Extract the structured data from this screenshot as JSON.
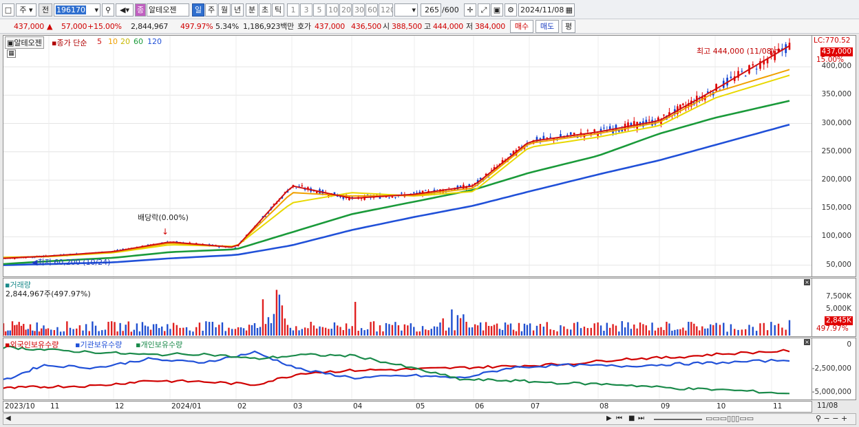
{
  "toolbar": {
    "period_type": "주",
    "market": "전",
    "code": "196170",
    "stock_tag": "종",
    "stock_name": "알테오젠",
    "periods": [
      "일",
      "주",
      "월",
      "년",
      "분",
      "초",
      "틱"
    ],
    "intervals": [
      "1",
      "3",
      "5",
      "10",
      "20",
      "30",
      "60",
      "120"
    ],
    "count": "265",
    "count_max": "/600",
    "date": "2024/11/08"
  },
  "quote": {
    "price": "437,000",
    "change": "57,000",
    "change_pct": "+15.00%",
    "volume": "2,844,967",
    "volume_ratio": "497.97%",
    "turnover": "5.34%",
    "amount": "1,186,923백만",
    "ask_label": "호가",
    "ask": "437,000",
    "bid": "436,500",
    "open_label": "시",
    "open": "388,500",
    "high_label": "고",
    "high": "444,000",
    "low_label": "저",
    "low": "384,000",
    "buy_label": "매수",
    "sell_label": "매도",
    "eval_label": "평"
  },
  "price_panel": {
    "name": "알테오젠",
    "indicator": "종가 단순",
    "ma_labels": [
      "5",
      "10",
      "20",
      "60",
      "120"
    ],
    "ma_colors": [
      "#d01010",
      "#f0a000",
      "#e8d800",
      "#1a9a3a",
      "#2050d8"
    ],
    "lc": "LC:770.52",
    "current_tag": "437,000",
    "pct_tag": "15.00%",
    "high_note": "최고 444,000 (11/08)",
    "low_note": "최저 60,200 (10/24)",
    "dividend_note": "배당락(0.00%)"
  },
  "volume_panel": {
    "title": "거래량",
    "value": "2,844,967주(497.97%)",
    "ticks": [
      "7,500K",
      "5,000K"
    ],
    "tag": "2,845K",
    "tag_pct": "497.97%"
  },
  "holdings_panel": {
    "series_names": [
      "외국인보유수량",
      "기관보유수량",
      "개인보유수량"
    ],
    "series_colors": [
      "#d00000",
      "#2050d8",
      "#1a8a4a"
    ],
    "ticks": [
      "0",
      "-2,500,000",
      "-5,000,000"
    ]
  },
  "x_labels": [
    "2023/10",
    "11",
    "12",
    "2024/01",
    "02",
    "03",
    "04",
    "05",
    "06",
    "07",
    "08",
    "09",
    "10",
    "11",
    "11/08"
  ],
  "chart_data": {
    "type": "line",
    "title": "",
    "y_ticks": [
      50000,
      100000,
      150000,
      200000,
      250000,
      300000,
      350000,
      400000
    ],
    "y_tick_labels": [
      "50,000",
      "100,000",
      "150,000",
      "200,000",
      "250,000",
      "300,000",
      "350,000",
      "400,000"
    ],
    "ylim": [
      35000,
      445000
    ],
    "x": [
      "2023/10",
      "11",
      "12",
      "2024/01",
      "02",
      "03",
      "04",
      "05",
      "06",
      "07",
      "08",
      "09",
      "10",
      "11"
    ],
    "series": [
      {
        "name": "5",
        "values": [
          62000,
          66000,
          74000,
          91000,
          81000,
          190000,
          168000,
          175000,
          190000,
          268000,
          285000,
          305000,
          360000,
          437000
        ]
      },
      {
        "name": "10",
        "values": [
          63000,
          66000,
          73000,
          89000,
          82000,
          178000,
          172000,
          173000,
          186000,
          265000,
          282000,
          302000,
          355000,
          395000
        ]
      },
      {
        "name": "20",
        "values": [
          64000,
          65000,
          72000,
          86000,
          83000,
          160000,
          178000,
          172000,
          180000,
          258000,
          276000,
          296000,
          345000,
          385000
        ]
      },
      {
        "name": "60",
        "values": [
          52000,
          57000,
          63000,
          73000,
          78000,
          108000,
          140000,
          162000,
          183000,
          213000,
          243000,
          282000,
          310000,
          340000
        ]
      },
      {
        "name": "120",
        "values": [
          50000,
          52000,
          55000,
          62000,
          68000,
          85000,
          112000,
          135000,
          155000,
          180000,
          210000,
          235000,
          262000,
          298000
        ]
      }
    ]
  }
}
